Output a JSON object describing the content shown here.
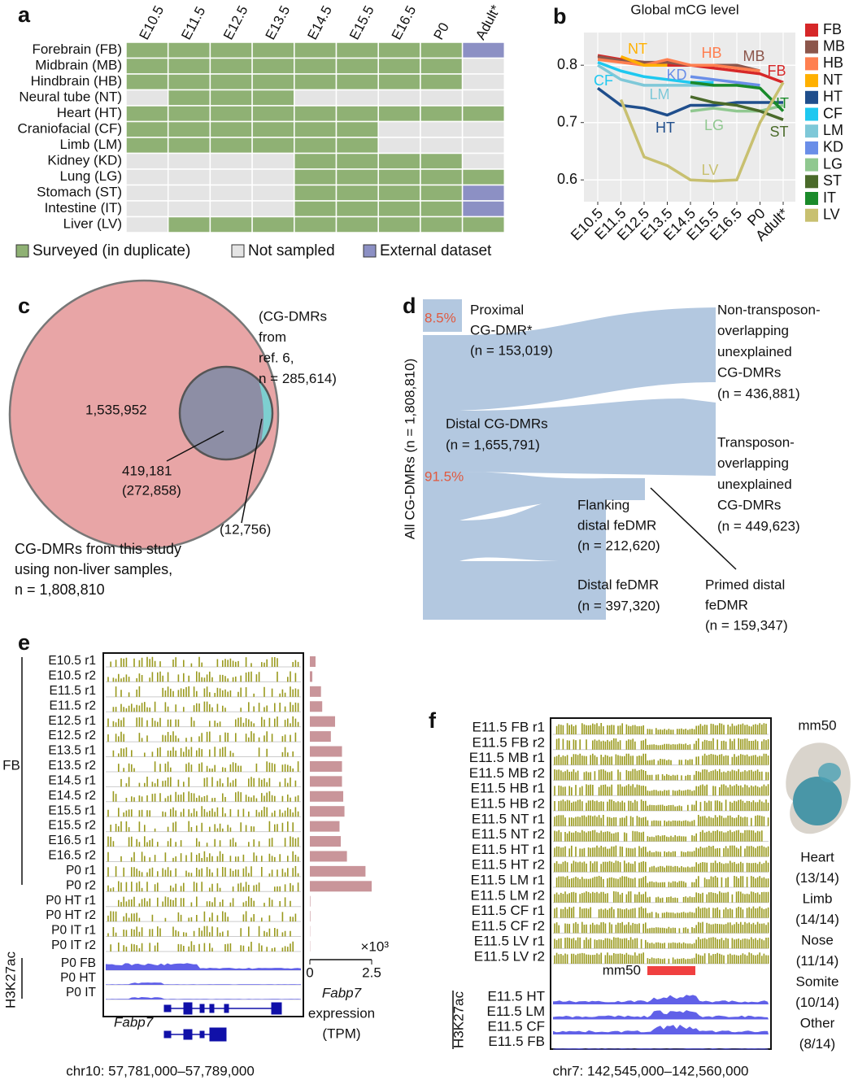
{
  "panel_a": {
    "label": "a",
    "stages": [
      "E10.5",
      "E11.5",
      "E12.5",
      "E13.5",
      "E14.5",
      "E15.5",
      "E16.5",
      "P0",
      "Adult*"
    ],
    "tissues": [
      "Forebrain (FB)",
      "Midbrain (MB)",
      "Hindbrain (HB)",
      "Neural tube (NT)",
      "Heart (HT)",
      "Craniofacial (CF)",
      "Limb (LM)",
      "Kidney (KD)",
      "Lung (LG)",
      "Stomach (ST)",
      "Intestine (IT)",
      "Liver (LV)"
    ],
    "legend": [
      {
        "name": "Surveyed (in duplicate)",
        "color": "#8fb174"
      },
      {
        "name": "Not sampled",
        "color": "#e4e4e4"
      },
      {
        "name": "External dataset",
        "color": "#8c90c4"
      }
    ],
    "status": [
      [
        0,
        0,
        0,
        0,
        0,
        0,
        0,
        0,
        2
      ],
      [
        0,
        0,
        0,
        0,
        0,
        0,
        0,
        0,
        1
      ],
      [
        0,
        0,
        0,
        0,
        0,
        0,
        0,
        0,
        1
      ],
      [
        1,
        0,
        0,
        0,
        1,
        1,
        1,
        1,
        1
      ],
      [
        0,
        0,
        0,
        0,
        0,
        0,
        0,
        0,
        0
      ],
      [
        0,
        0,
        0,
        0,
        0,
        0,
        1,
        1,
        1
      ],
      [
        0,
        0,
        0,
        0,
        0,
        0,
        1,
        1,
        1
      ],
      [
        1,
        1,
        1,
        1,
        0,
        0,
        0,
        0,
        1
      ],
      [
        1,
        1,
        1,
        1,
        0,
        0,
        0,
        0,
        0
      ],
      [
        1,
        1,
        1,
        1,
        0,
        0,
        0,
        0,
        2
      ],
      [
        1,
        1,
        1,
        1,
        0,
        0,
        0,
        0,
        2
      ],
      [
        1,
        0,
        0,
        0,
        0,
        0,
        0,
        0,
        0
      ]
    ]
  },
  "chart_data": {
    "type": "line",
    "label": "b",
    "title": "Global mCG level",
    "categories": [
      "E10.5",
      "E11.5",
      "E12.5",
      "E13.5",
      "E14.5",
      "E15.5",
      "E16.5",
      "P0",
      "Adult*"
    ],
    "ylim": [
      0.562,
      0.857
    ],
    "yticks": [
      0.6,
      0.7,
      0.8
    ],
    "grid": true,
    "series": [
      {
        "name": "FB",
        "color": "#d62728",
        "values": [
          0.817,
          0.81,
          0.805,
          0.8,
          0.8,
          0.795,
          0.79,
          0.785,
          0.77
        ]
      },
      {
        "name": "MB",
        "color": "#8c564b",
        "values": [
          0.815,
          0.808,
          0.805,
          0.805,
          0.8,
          0.8,
          0.8,
          0.79,
          null
        ]
      },
      {
        "name": "HB",
        "color": "#ff7f50",
        "values": [
          0.81,
          0.805,
          0.8,
          0.81,
          0.8,
          0.8,
          0.795,
          0.79,
          null
        ]
      },
      {
        "name": "NT",
        "color": "#ffb000",
        "values": [
          null,
          0.815,
          0.8,
          0.8,
          null,
          null,
          null,
          null,
          null
        ]
      },
      {
        "name": "HT",
        "color": "#1f4e8c",
        "values": [
          0.76,
          0.73,
          0.725,
          0.713,
          0.73,
          0.73,
          0.735,
          0.735,
          0.735
        ]
      },
      {
        "name": "CF",
        "color": "#1ec8f0",
        "values": [
          0.805,
          0.79,
          0.78,
          0.775,
          0.77,
          0.77,
          null,
          null,
          null
        ]
      },
      {
        "name": "LM",
        "color": "#7ec8d8",
        "values": [
          0.8,
          0.775,
          0.765,
          0.765,
          0.765,
          0.765,
          null,
          null,
          null
        ]
      },
      {
        "name": "KD",
        "color": "#6a8ee8",
        "values": [
          null,
          null,
          null,
          null,
          0.78,
          0.775,
          0.77,
          0.765,
          null
        ]
      },
      {
        "name": "LG",
        "color": "#90c890",
        "values": [
          null,
          null,
          null,
          null,
          0.72,
          0.725,
          0.72,
          0.72,
          0.73
        ]
      },
      {
        "name": "ST",
        "color": "#4a6a2a",
        "values": [
          null,
          null,
          null,
          null,
          0.745,
          0.735,
          0.73,
          0.72,
          0.705
        ]
      },
      {
        "name": "IT",
        "color": "#1a8a2a",
        "values": [
          null,
          null,
          null,
          null,
          0.77,
          0.765,
          0.765,
          0.76,
          0.72
        ]
      },
      {
        "name": "LV",
        "color": "#c8c070",
        "values": [
          null,
          0.74,
          0.64,
          0.625,
          0.6,
          0.598,
          0.6,
          0.7,
          0.77
        ]
      }
    ]
  },
  "panel_c": {
    "label": "c",
    "ref": [
      "(CG-DMRs",
      "from",
      "ref. 6,",
      "n = 285,614)"
    ],
    "only_study": "1,535,952",
    "overlap": [
      "419,181",
      "(272,858)"
    ],
    "only_ref": "(12,756)",
    "study": [
      "CG-DMRs from this study",
      "using non-liver samples,",
      "n = 1,808,810"
    ]
  },
  "panel_d": {
    "label": "d",
    "axis": "All CG-DMRs (n = 1,808,810)",
    "pct_proximal": "8.5%",
    "pct_distal": "91.5%",
    "proximal": [
      "Proximal",
      "CG-DMR*",
      "(n = 153,019)"
    ],
    "distal": [
      "Distal CG-DMRs",
      "(n = 1,655,791)"
    ],
    "non_transposon": [
      "Non-transposon-",
      "overlapping",
      "unexplained",
      "CG-DMRs",
      "(n = 436,881)"
    ],
    "transposon": [
      "Transposon-",
      "overlapping",
      "unexplained",
      "CG-DMRs",
      "(n = 449,623)"
    ],
    "flanking": [
      "Flanking",
      "distal feDMR",
      "(n = 212,620)"
    ],
    "distal_fedmr": [
      "Distal feDMR",
      "(n = 397,320)"
    ],
    "primed": [
      "Primed distal",
      "feDMR",
      "(n = 159,347)"
    ]
  },
  "panel_e": {
    "label": "e",
    "group": "FB",
    "rows": [
      "E10.5 r1",
      "E10.5 r2",
      "E11.5 r1",
      "E11.5 r2",
      "E12.5 r1",
      "E12.5 r2",
      "E13.5 r1",
      "E13.5 r2",
      "E14.5 r1",
      "E14.5 r2",
      "E15.5 r1",
      "E15.5 r2",
      "E16.5 r1",
      "E16.5 r2",
      "P0 r1",
      "P0 r2",
      "P0 HT r1",
      "P0 HT r2",
      "P0 IT r1",
      "P0 IT r2"
    ],
    "h3k27ac": "H3K27ac",
    "h3k27ac_rows": [
      "P0 FB",
      "P0 HT",
      "P0 IT"
    ],
    "gene": "Fabp7",
    "locus": "chr10: 57,781,000–57,789,000",
    "expression": {
      "values": [
        0.23,
        0.1,
        0.45,
        0.5,
        1.02,
        0.85,
        1.3,
        1.3,
        1.3,
        1.35,
        1.4,
        1.2,
        1.25,
        1.5,
        2.25,
        2.5,
        0.02,
        0.02,
        0.01,
        0.01
      ],
      "color": "#c9959a",
      "xlim": [
        0,
        2.5
      ],
      "xticks": [
        0,
        2.5
      ],
      "multiplier": "×10³",
      "xlabel": [
        "Fabp7",
        "expression",
        "(TPM)"
      ]
    }
  },
  "panel_f": {
    "label": "f",
    "rows": [
      "E11.5 FB r1",
      "E11.5 FB r2",
      "E11.5 MB r1",
      "E11.5 MB r2",
      "E11.5 HB r1",
      "E11.5 HB r2",
      "E11.5 NT r1",
      "E11.5 NT r2",
      "E11.5 HT r1",
      "E11.5 HT r2",
      "E11.5 LM r1",
      "E11.5 LM r2",
      "E11.5 CF r1",
      "E11.5 CF r2",
      "E11.5 LV r1",
      "E11.5 LV r2"
    ],
    "element": "mm50",
    "h3k27ac": "H3K27ac",
    "h3k27ac_rows": [
      "E11.5 HT",
      "E11.5 LM",
      "E11.5 CF",
      "E11.5 FB"
    ],
    "locus": "chr7: 142,545,000–142,560,000",
    "image_title": "mm50",
    "counts": [
      "Heart",
      "(13/14)",
      "Limb",
      "(14/14)",
      "Nose",
      "(11/14)",
      "Somite",
      "(10/14)",
      "Other",
      "(8/14)"
    ]
  }
}
